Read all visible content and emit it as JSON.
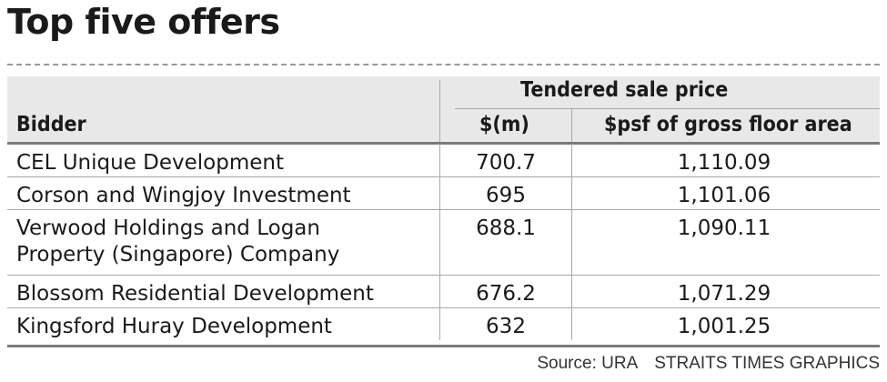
{
  "title": "Top five offers",
  "header": {
    "group_label": "Tendered sale price",
    "col_bidder": "Bidder",
    "col_price": "$(m)",
    "col_psf": "$psf of gross floor area"
  },
  "rows": [
    {
      "bidder": [
        "CEL Unique Development"
      ],
      "price": "700.7",
      "psf": "1,110.09"
    },
    {
      "bidder": [
        "Corson and Wingjoy Investment"
      ],
      "price": "695",
      "psf": "1,101.06"
    },
    {
      "bidder": [
        "Verwood Holdings and Logan",
        "Property (Singapore) Company"
      ],
      "price": "688.1",
      "psf": "1,090.11"
    },
    {
      "bidder": [
        "Blossom Residential Development"
      ],
      "price": "676.2",
      "psf": "1,071.29"
    },
    {
      "bidder": [
        "Kingsford Huray Development"
      ],
      "price": "632",
      "psf": "1,001.25"
    }
  ],
  "footer": {
    "source": "Source: URA",
    "credit": "STRAITS TIMES GRAPHICS"
  },
  "chart_data": {
    "type": "table",
    "title": "Top five offers",
    "columns": [
      "Bidder",
      "$(m)",
      "$psf of gross floor area"
    ],
    "column_group": {
      "label": "Tendered sale price",
      "columns": [
        "$(m)",
        "$psf of gross floor area"
      ]
    },
    "rows": [
      [
        "CEL Unique Development",
        700.7,
        1110.09
      ],
      [
        "Corson and Wingjoy Investment",
        695,
        1101.06
      ],
      [
        "Verwood Holdings and Logan Property (Singapore) Company",
        688.1,
        1090.11
      ],
      [
        "Blossom Residential Development",
        676.2,
        1071.29
      ],
      [
        "Kingsford Huray Development",
        632,
        1001.25
      ]
    ]
  }
}
